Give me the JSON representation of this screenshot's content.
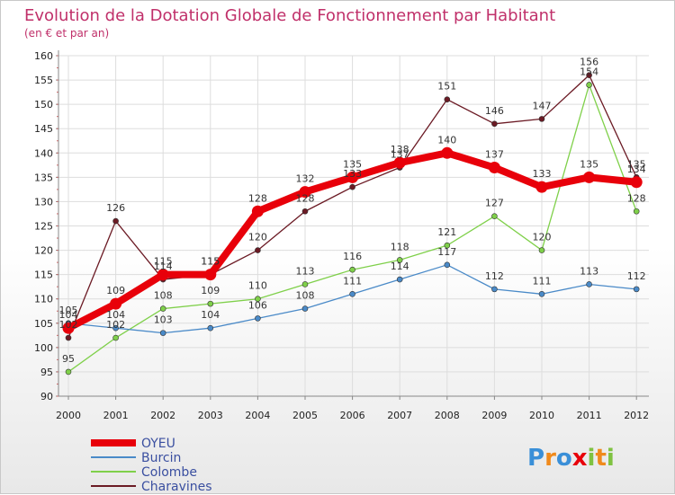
{
  "chart_data": {
    "type": "line",
    "title": "Evolution de la Dotation Globale de Fonctionnement par Habitant",
    "subtitle": "(en € et par an)",
    "xlabel": "",
    "ylabel": "",
    "categories": [
      "2000",
      "2001",
      "2002",
      "2003",
      "2004",
      "2005",
      "2006",
      "2007",
      "2008",
      "2009",
      "2010",
      "2011",
      "2012"
    ],
    "ylim": [
      90,
      160
    ],
    "yticks": [
      90,
      95,
      100,
      105,
      110,
      115,
      120,
      125,
      130,
      135,
      140,
      145,
      150,
      155,
      160
    ],
    "grid": true,
    "legend_position": "bottom-left",
    "series": [
      {
        "name": "Charavines",
        "color": "#6b1a24",
        "values": [
          102,
          126,
          114,
          115,
          120,
          128,
          133,
          137,
          151,
          146,
          147,
          156,
          135
        ]
      },
      {
        "name": "Colombe",
        "color": "#7fd04a",
        "values": [
          95,
          102,
          108,
          109,
          110,
          113,
          116,
          118,
          121,
          127,
          120,
          154,
          128
        ]
      },
      {
        "name": "Burcin",
        "color": "#4a8ac8",
        "values": [
          105,
          104,
          103,
          104,
          106,
          108,
          111,
          114,
          117,
          112,
          111,
          113,
          112
        ]
      },
      {
        "name": "OYEU",
        "color": "#e8000a",
        "values": [
          104,
          109,
          115,
          115,
          128,
          132,
          135,
          138,
          140,
          137,
          133,
          135,
          134
        ]
      }
    ],
    "legend_order": [
      "OYEU",
      "Burcin",
      "Colombe",
      "Charavines"
    ]
  },
  "brand": {
    "text": "Proxiti",
    "letters": [
      "P",
      "r",
      "o",
      "x",
      "i",
      "t",
      "i"
    ],
    "colors": [
      "#3a8fd8",
      "#f08a1c",
      "#3a8fd8",
      "#e8000a",
      "#7fc241",
      "#f08a1c",
      "#7fc241"
    ]
  }
}
